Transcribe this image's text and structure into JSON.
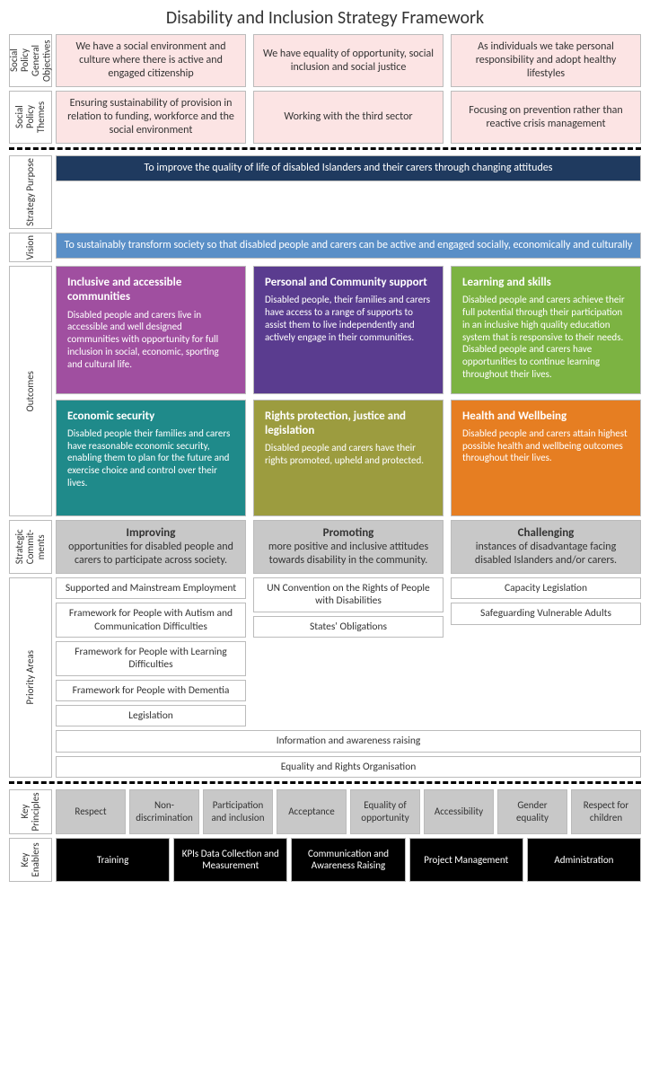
{
  "title": "Disability and Inclusion Strategy Framework",
  "rows": {
    "objectives": {
      "label": "Social Policy General Objectives",
      "bg": "#fce4e4",
      "items": [
        "We have a social environment and culture where there is active and engaged citizenship",
        "We have equality of opportunity, social inclusion and social justice",
        "As individuals we take personal responsibility and adopt healthy lifestyles"
      ]
    },
    "themes": {
      "label": "Social Policy Themes",
      "bg": "#fce4e4",
      "items": [
        "Ensuring sustainability of provision in relation to funding, workforce and the social environment",
        "Working with the third sector",
        "Focusing on prevention rather than reactive crisis management"
      ]
    },
    "purpose": {
      "label": "Strategy Purpose",
      "bg": "#1f3a5f",
      "text": "To improve the quality of life of disabled Islanders and their carers through changing attitudes"
    },
    "vision": {
      "label": "Vision",
      "bg": "#5a8fc7",
      "text": "To sustainably transform society so that disabled people and carers can be active and engaged socially, economically and culturally"
    },
    "outcomes": {
      "label": "Outcomes",
      "items": [
        {
          "title": "Inclusive and accessible communities",
          "desc": "Disabled people and carers live in accessible and well designed communities with opportunity for full inclusion in social,\neconomic, sporting and cultural life.",
          "bg": "#a04fa0"
        },
        {
          "title": "Personal and Community support",
          "desc": "Disabled people, their families and carers have access to a range of supports to assist them to live independently and actively engage in their communities.",
          "bg": "#5a3c8f"
        },
        {
          "title": "Learning and skills",
          "desc": "Disabled people and carers achieve their full potential through their participation in an inclusive high quality education system that is responsive to their needs. Disabled people and carers have opportunities to continue learning throughout their lives.",
          "bg": "#7cb342"
        },
        {
          "title": "Economic security",
          "desc": "Disabled people their families and carers have reasonable economic security, enabling them to plan for the future and exercise choice and control over their lives.",
          "bg": "#1f8a8a"
        },
        {
          "title": "Rights protection, justice and legislation",
          "desc": "Disabled people and carers have their rights promoted, upheld and protected.",
          "bg": "#9c9c3f"
        },
        {
          "title": "Health and Wellbeing",
          "desc": "Disabled people and carers attain highest possible health and wellbeing outcomes throughout their lives.",
          "bg": "#e67e22"
        }
      ]
    },
    "commitments": {
      "label": "Strategic Commit-ments",
      "bg": "#c8c8c8",
      "items": [
        {
          "title": "Improving",
          "desc": "opportunities for disabled people and carers to participate across society."
        },
        {
          "title": "Promoting",
          "desc": "more positive and inclusive attitudes towards disability in the community."
        },
        {
          "title": "Challenging",
          "desc": "instances of disadvantage facing disabled Islanders and/or carers."
        }
      ]
    },
    "priority": {
      "label": "Priority Areas",
      "col1": [
        "Supported and Mainstream Employment",
        "Framework for People with Autism and Communication Difficulties",
        "Framework for People with Learning Difficulties",
        "Framework for People with Dementia",
        "Legislation"
      ],
      "col2": [
        "UN Convention on the Rights of People with Disabilities",
        "States' Obligations"
      ],
      "col3": [
        "Capacity Legislation",
        "Safeguarding Vulnerable Adults"
      ],
      "full": [
        "Information and awareness raising",
        "Equality and Rights Organisation"
      ]
    },
    "principles": {
      "label": "Key Principles",
      "bg": "#c8c8c8",
      "items": [
        "Respect",
        "Non-discrimination",
        "Participation and inclusion",
        "Acceptance",
        "Equality of opportunity",
        "Accessibility",
        "Gender equality",
        "Respect for children"
      ]
    },
    "enablers": {
      "label": "Key Enablers",
      "bg": "#000000",
      "items": [
        "Training",
        "KPIs Data Collection and Measurement",
        "Communication and Awareness Raising",
        "Project Management",
        "Administration"
      ]
    }
  }
}
